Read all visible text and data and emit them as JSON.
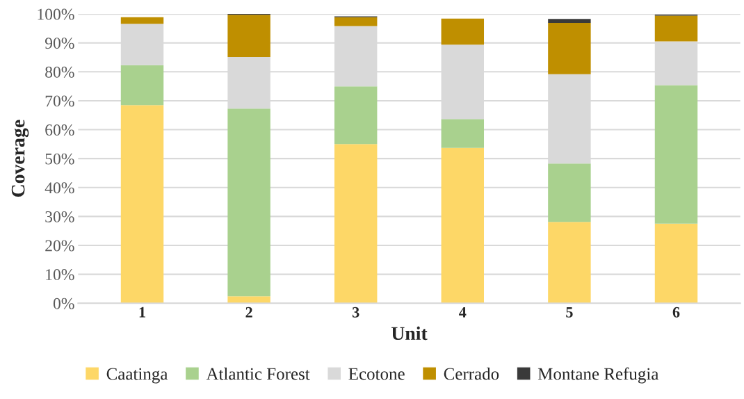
{
  "chart_data": {
    "type": "bar",
    "stacked": true,
    "xlabel": "Unit",
    "ylabel": "Coverage",
    "categories": [
      "1",
      "2",
      "3",
      "4",
      "5",
      "6"
    ],
    "series": [
      {
        "name": "Caatinga",
        "color": "#fdd767",
        "values": [
          68.5,
          2.4,
          55.0,
          53.7,
          28.1,
          27.5
        ]
      },
      {
        "name": "Atlantic Forest",
        "color": "#a9d18e",
        "values": [
          13.8,
          64.9,
          20.0,
          10.0,
          20.2,
          47.9
        ]
      },
      {
        "name": "Ecotone",
        "color": "#d9d9d9",
        "values": [
          14.3,
          17.8,
          20.8,
          25.7,
          30.9,
          15.1
        ]
      },
      {
        "name": "Cerrado",
        "color": "#bf8f00",
        "values": [
          2.3,
          14.6,
          3.1,
          9.0,
          17.7,
          8.9
        ]
      },
      {
        "name": "Montane Refugia",
        "color": "#3a3a3a",
        "values": [
          null,
          0.3,
          0.3,
          null,
          1.4,
          0.4
        ]
      }
    ],
    "ylim": [
      0,
      100
    ],
    "yticks": [
      {
        "value": 0,
        "label": "0%"
      },
      {
        "value": 10,
        "label": "10%"
      },
      {
        "value": 20,
        "label": "20%"
      },
      {
        "value": 30,
        "label": "30%"
      },
      {
        "value": 40,
        "label": "40%"
      },
      {
        "value": 50,
        "label": "50%"
      },
      {
        "value": 60,
        "label": "60%"
      },
      {
        "value": 70,
        "label": "70%"
      },
      {
        "value": 80,
        "label": "80%"
      },
      {
        "value": 90,
        "label": "90%"
      },
      {
        "value": 100,
        "label": "100%"
      }
    ],
    "grid": "y",
    "legend": "bottom"
  }
}
